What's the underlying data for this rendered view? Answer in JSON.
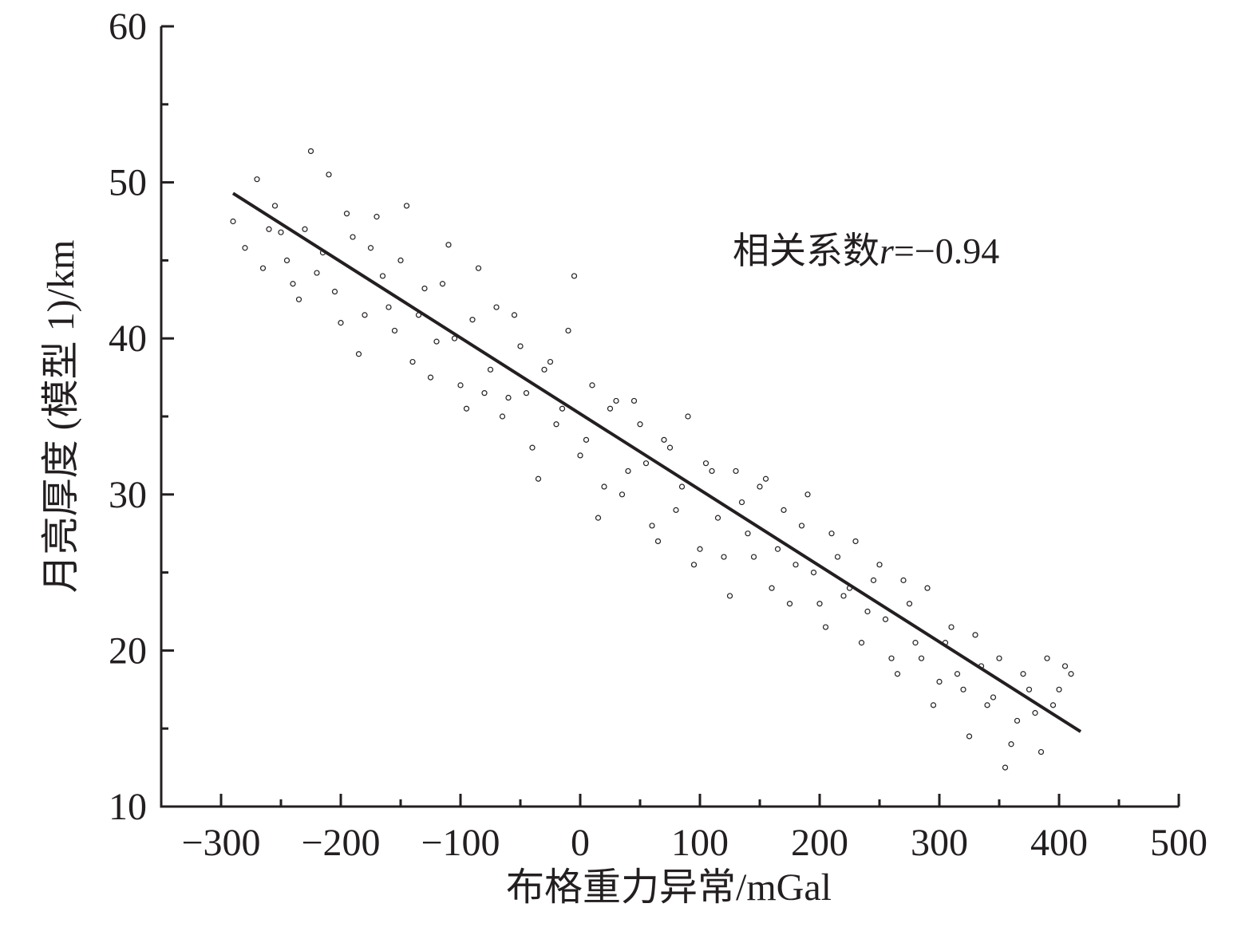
{
  "chart_data": {
    "type": "scatter",
    "xlabel": "布格重力异常/mGal",
    "ylabel": "月亮厚度 (模型 1)/km",
    "annotation": {
      "prefix": "相关系数",
      "symbol": "r",
      "suffix": "=−0.94"
    },
    "xlim": [
      -350,
      500
    ],
    "ylim": [
      10,
      60
    ],
    "xticks": [
      {
        "value": -300,
        "label": "−300"
      },
      {
        "value": -200,
        "label": "−200"
      },
      {
        "value": -100,
        "label": "−100"
      },
      0,
      100,
      200,
      300,
      400,
      500
    ],
    "yticks": [
      10,
      20,
      30,
      40,
      50,
      60
    ],
    "xminorticks": [
      -250,
      -150,
      -50,
      50,
      150,
      250,
      350,
      450
    ],
    "yminorticks": [
      15,
      25,
      35,
      45,
      55
    ],
    "series": [
      {
        "type": "scatter",
        "color": "#231f20",
        "x": [
          -290,
          -280,
          -270,
          -260,
          -250,
          -240,
          -230,
          -220,
          -210,
          -200,
          -190,
          -180,
          -170,
          -160,
          -150,
          -140,
          -130,
          -120,
          -110,
          -100,
          -90,
          -80,
          -70,
          -60,
          -50,
          -40,
          -30,
          -20,
          -10,
          0,
          10,
          20,
          30,
          40,
          50,
          60,
          70,
          80,
          90,
          100,
          110,
          120,
          130,
          140,
          150,
          160,
          170,
          180,
          190,
          200,
          210,
          220,
          230,
          240,
          250,
          260,
          270,
          280,
          290,
          300,
          310,
          320,
          330,
          340,
          350,
          360,
          370,
          380,
          390,
          400,
          410,
          -265,
          -255,
          -245,
          -235,
          -225,
          -215,
          -205,
          -195,
          -185,
          -175,
          -165,
          -155,
          -145,
          -135,
          -125,
          -115,
          -105,
          -95,
          -85,
          -75,
          -65,
          -55,
          -45,
          -35,
          -25,
          -15,
          -5,
          5,
          15,
          25,
          35,
          45,
          55,
          65,
          75,
          85,
          95,
          105,
          115,
          125,
          135,
          145,
          155,
          165,
          175,
          185,
          195,
          205,
          215,
          225,
          235,
          245,
          255,
          265,
          275,
          285,
          295,
          305,
          315,
          325,
          335,
          345,
          355,
          365,
          375,
          385,
          395,
          405
        ],
        "values": [
          47.5,
          45.8,
          50.2,
          47.0,
          46.8,
          43.5,
          47.0,
          44.2,
          50.5,
          41.0,
          46.5,
          41.5,
          47.8,
          42.0,
          45.0,
          38.5,
          43.2,
          39.8,
          46.0,
          37.0,
          41.2,
          36.5,
          42.0,
          36.2,
          39.5,
          33.0,
          38.0,
          34.5,
          40.5,
          32.5,
          37.0,
          30.5,
          36.0,
          31.5,
          34.5,
          28.0,
          33.5,
          29.0,
          35.0,
          26.5,
          31.5,
          26.0,
          31.5,
          27.5,
          30.5,
          24.0,
          29.0,
          25.5,
          30.0,
          23.0,
          27.5,
          23.5,
          27.0,
          22.5,
          25.5,
          19.5,
          24.5,
          20.5,
          24.0,
          18.0,
          21.5,
          17.5,
          21.0,
          16.5,
          19.5,
          14.0,
          18.5,
          16.0,
          19.5,
          17.5,
          18.5,
          44.5,
          48.5,
          45.0,
          42.5,
          52.0,
          45.5,
          43.0,
          48.0,
          39.0,
          45.8,
          44.0,
          40.5,
          48.5,
          41.5,
          37.5,
          43.5,
          40.0,
          35.5,
          44.5,
          38.0,
          35.0,
          41.5,
          36.5,
          31.0,
          38.5,
          35.5,
          44.0,
          33.5,
          28.5,
          35.5,
          30.0,
          36.0,
          32.0,
          27.0,
          33.0,
          30.5,
          25.5,
          32.0,
          28.5,
          23.5,
          29.5,
          26.0,
          31.0,
          26.5,
          23.0,
          28.0,
          25.0,
          21.5,
          26.0,
          24.0,
          20.5,
          24.5,
          22.0,
          18.5,
          23.0,
          19.5,
          16.5,
          20.5,
          18.5,
          14.5,
          19.0,
          17.0,
          12.5,
          15.5,
          17.5,
          13.5,
          16.5,
          19.0
        ]
      },
      {
        "type": "line",
        "color": "#231f20",
        "x": [
          -290,
          418
        ],
        "values": [
          49.3,
          14.8
        ]
      }
    ]
  }
}
